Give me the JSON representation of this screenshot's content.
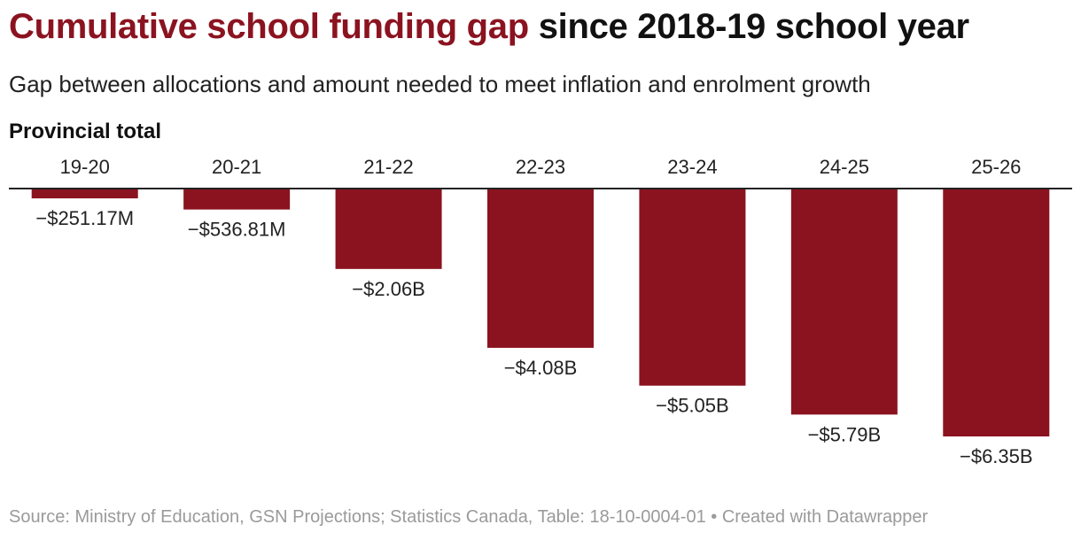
{
  "title": {
    "highlight": "Cumulative school funding gap",
    "rest": " since 2018-19 school year"
  },
  "subtitle": "Gap between allocations and amount needed to meet inflation and enrolment growth",
  "panel_label": "Provincial total",
  "footer": {
    "source": "Source: Ministry of Education, GSN Projections; Statistics Canada, Table: 18-10-0004-01",
    "separator": " • ",
    "credit": "Created with Datawrapper"
  },
  "colors": {
    "bar": "#8b1320",
    "accent": "#8b1320",
    "axis": "#222222",
    "footer_text": "#9a9a9a"
  },
  "chart_data": {
    "type": "bar",
    "title": "Cumulative school funding gap since 2018-19 school year",
    "xlabel": "",
    "ylabel": "",
    "units": "billions CAD",
    "categories": [
      "19-20",
      "20-21",
      "21-22",
      "22-23",
      "23-24",
      "24-25",
      "25-26"
    ],
    "values": [
      -0.25117,
      -0.53681,
      -2.06,
      -4.08,
      -5.05,
      -5.79,
      -6.35
    ],
    "data_labels": [
      "−$251.17M",
      "−$536.81M",
      "−$2.06B",
      "−$4.08B",
      "−$5.05B",
      "−$5.79B",
      "−$6.35B"
    ],
    "ylim": [
      -6.35,
      0
    ],
    "grid": false,
    "legend": "none"
  }
}
